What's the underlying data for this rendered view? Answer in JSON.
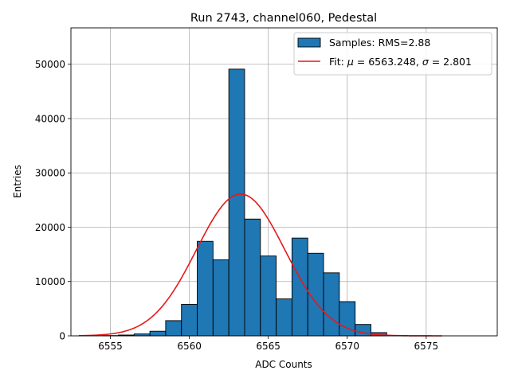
{
  "chart_data": {
    "type": "bar",
    "title": "Run 2743, channel060, Pedestal",
    "xlabel": "ADC Counts",
    "ylabel": "Entries",
    "xlim": [
      6552.5,
      6579.5
    ],
    "ylim": [
      0,
      56700
    ],
    "grid": true,
    "legend_position": "top-right",
    "x_ticks": [
      6555,
      6560,
      6565,
      6570,
      6575
    ],
    "x_tick_labels": [
      "6555",
      "6560",
      "6565",
      "6570",
      "6575"
    ],
    "y_ticks": [
      0,
      10000,
      20000,
      30000,
      40000,
      50000
    ],
    "y_tick_labels": [
      "0",
      "10000",
      "20000",
      "30000",
      "40000",
      "50000"
    ],
    "histogram": {
      "name": "Samples: RMS=2.88",
      "bin_width": 1,
      "bin_centers": [
        6555,
        6556,
        6557,
        6558,
        6559,
        6560,
        6561,
        6562,
        6563,
        6564,
        6565,
        6566,
        6567,
        6568,
        6569,
        6570,
        6571,
        6572
      ],
      "values": [
        50,
        150,
        350,
        850,
        2800,
        5800,
        17400,
        14000,
        49100,
        21500,
        14700,
        6800,
        18000,
        15200,
        11600,
        6300,
        2100,
        600
      ],
      "color": "#1f77b4",
      "edge_color": "#000000"
    },
    "fit": {
      "name": "Fit: μ = 6563.248, σ = 2.801",
      "legend_prefix": "Fit: ",
      "mu_symbol": "μ",
      "mu_text": " = 6563.248, ",
      "sigma_symbol": "σ",
      "sigma_text": " = 2.801",
      "mu": 6563.248,
      "sigma": 2.801,
      "amplitude": 26100,
      "x_range": [
        6553,
        6576
      ],
      "color": "#e41a1c"
    }
  }
}
